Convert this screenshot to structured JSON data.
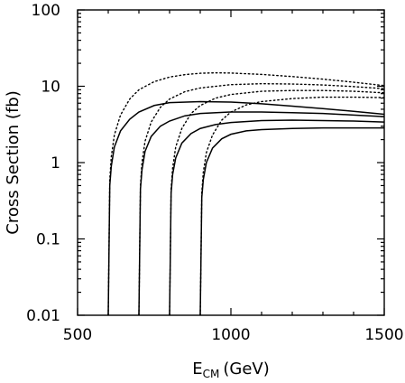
{
  "chart_data": {
    "type": "line",
    "xlabel": "E",
    "xlabel_sub": "CM",
    "xlabel_unit": "(GeV)",
    "ylabel": "Cross Section (fb)",
    "xlim": [
      500,
      1500
    ],
    "ylim": [
      0.01,
      100
    ],
    "yscale": "log",
    "grid": false,
    "legend": "none",
    "xticks": [
      500,
      1000,
      1500
    ],
    "xtick_labels": [
      "500",
      "1000",
      "1500"
    ],
    "yticks": [
      0.01,
      0.1,
      1,
      10,
      100
    ],
    "ytick_labels": [
      "0.01",
      "0.1",
      "1",
      "10",
      "100"
    ],
    "series": [
      {
        "style": "solid",
        "x": [
          600,
          605,
          610,
          620,
          640,
          670,
          700,
          750,
          800,
          900,
          1000,
          1100,
          1200,
          1300,
          1400,
          1500
        ],
        "y": [
          0.01,
          0.5,
          0.9,
          1.6,
          2.6,
          3.7,
          4.6,
          5.6,
          6.1,
          6.3,
          6.2,
          5.9,
          5.5,
          5.1,
          4.7,
          4.3
        ]
      },
      {
        "style": "solid",
        "x": [
          700,
          705,
          710,
          720,
          740,
          770,
          800,
          850,
          900,
          1000,
          1100,
          1200,
          1300,
          1400,
          1500
        ],
        "y": [
          0.01,
          0.45,
          0.8,
          1.4,
          2.2,
          3.0,
          3.5,
          4.1,
          4.4,
          4.6,
          4.6,
          4.5,
          4.4,
          4.2,
          4.0
        ]
      },
      {
        "style": "solid",
        "x": [
          800,
          805,
          810,
          820,
          840,
          870,
          900,
          950,
          1000,
          1100,
          1200,
          1300,
          1400,
          1500
        ],
        "y": [
          0.01,
          0.4,
          0.7,
          1.15,
          1.8,
          2.4,
          2.8,
          3.15,
          3.35,
          3.55,
          3.6,
          3.55,
          3.5,
          3.4
        ]
      },
      {
        "style": "solid",
        "x": [
          900,
          905,
          910,
          920,
          940,
          970,
          1000,
          1050,
          1100,
          1200,
          1300,
          1400,
          1500
        ],
        "y": [
          0.01,
          0.35,
          0.6,
          1.0,
          1.55,
          2.05,
          2.35,
          2.6,
          2.7,
          2.8,
          2.85,
          2.85,
          2.85
        ]
      },
      {
        "style": "dotted",
        "x": [
          600,
          605,
          610,
          620,
          640,
          670,
          700,
          750,
          800,
          850,
          900,
          950,
          1000,
          1100,
          1200,
          1300,
          1400,
          1500
        ],
        "y": [
          0.01,
          0.6,
          1.2,
          2.3,
          4.2,
          6.8,
          9.0,
          11.5,
          13.2,
          14.2,
          14.8,
          15.0,
          14.9,
          14.3,
          13.4,
          12.4,
          11.3,
          10.2
        ]
      },
      {
        "style": "dotted",
        "x": [
          700,
          705,
          710,
          720,
          740,
          770,
          800,
          850,
          900,
          1000,
          1100,
          1200,
          1300,
          1400,
          1500
        ],
        "y": [
          0.01,
          0.5,
          1.0,
          1.9,
          3.4,
          5.3,
          6.8,
          8.5,
          9.5,
          10.5,
          10.8,
          10.7,
          10.4,
          9.9,
          9.3
        ]
      },
      {
        "style": "dotted",
        "x": [
          800,
          805,
          810,
          820,
          840,
          870,
          900,
          950,
          1000,
          1100,
          1200,
          1300,
          1400,
          1500
        ],
        "y": [
          0.01,
          0.45,
          0.85,
          1.6,
          2.8,
          4.4,
          5.6,
          7.0,
          7.8,
          8.6,
          8.8,
          8.8,
          8.6,
          8.2
        ]
      },
      {
        "style": "dotted",
        "x": [
          900,
          905,
          910,
          920,
          940,
          970,
          1000,
          1050,
          1100,
          1200,
          1300,
          1400,
          1500
        ],
        "y": [
          0.01,
          0.4,
          0.75,
          1.35,
          2.3,
          3.6,
          4.6,
          5.7,
          6.3,
          6.9,
          7.2,
          7.2,
          7.1
        ]
      }
    ]
  }
}
